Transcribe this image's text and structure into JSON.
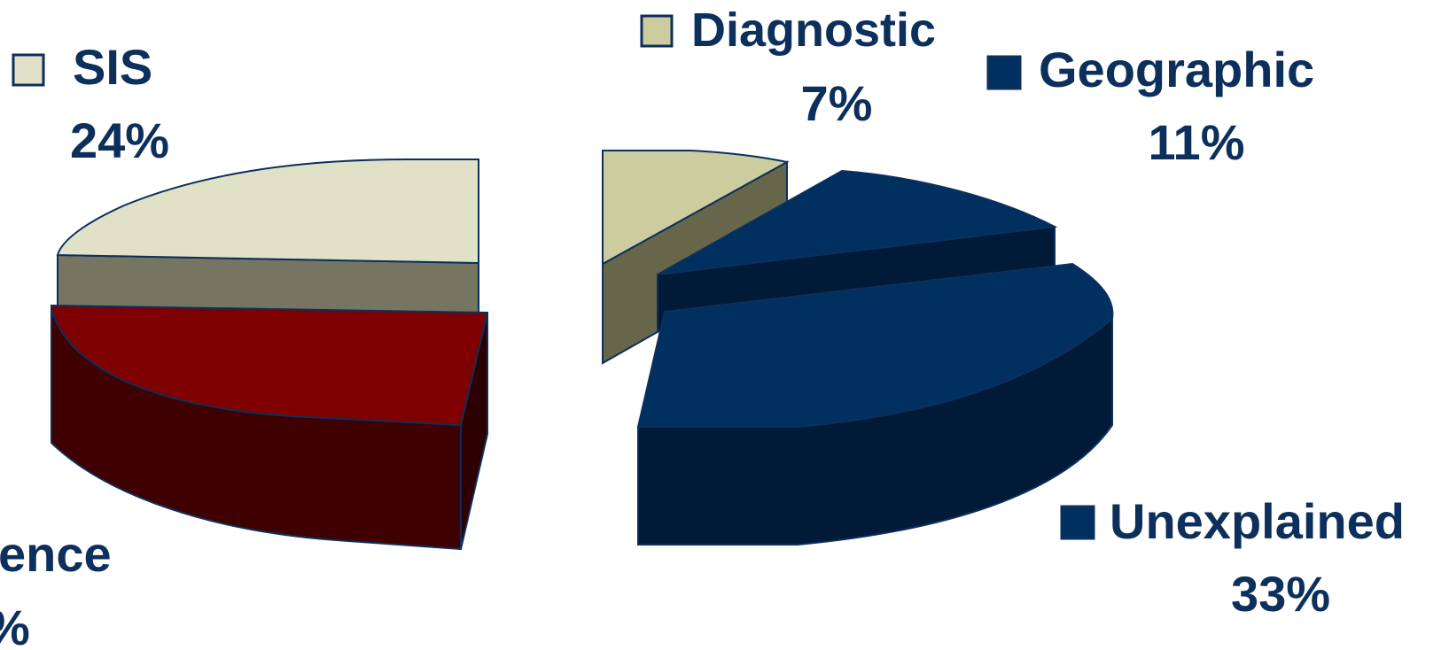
{
  "chart_data": {
    "type": "pie",
    "three_d": true,
    "slices": [
      {
        "label": "SIS",
        "value": 24,
        "value_label": "24%",
        "color": "#e1e1c7"
      },
      {
        "label": "Diagnostic",
        "value": 7,
        "value_label": "7%",
        "color": "#cccc9e"
      },
      {
        "label": "Geographic",
        "value": 11,
        "value_label": "11%",
        "color": "#00305f"
      },
      {
        "label": "Unexplained",
        "value": 33,
        "value_label": "33%",
        "color": "#00305f"
      },
      {
        "label": "ence",
        "value": null,
        "value_label": "%",
        "color": "#7f0000"
      }
    ],
    "label_color": "#0d2f5c"
  }
}
